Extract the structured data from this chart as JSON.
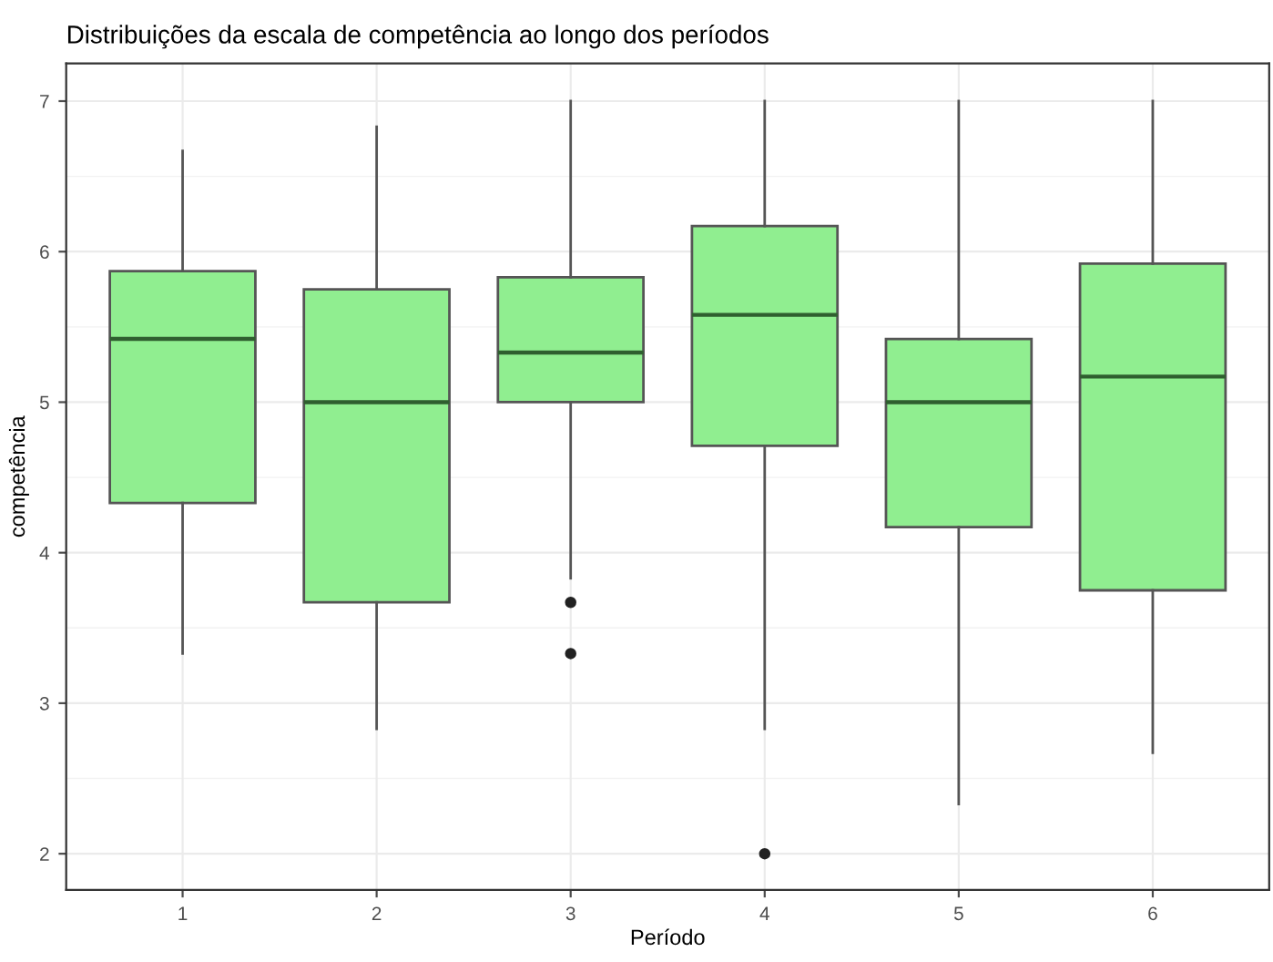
{
  "chart_data": {
    "type": "box",
    "title": "Distribuições da escala de competência ao longo dos períodos",
    "xlabel": "Período",
    "ylabel": "competência",
    "categories": [
      "1",
      "2",
      "3",
      "4",
      "5",
      "6"
    ],
    "color": "#90ee90",
    "boxes": [
      {
        "low": 3.33,
        "q1": 4.33,
        "median": 5.42,
        "q3": 5.87,
        "high": 6.67
      },
      {
        "low": 2.83,
        "q1": 3.67,
        "median": 5.0,
        "q3": 5.75,
        "high": 6.83
      },
      {
        "low": 3.83,
        "q1": 5.0,
        "median": 5.33,
        "q3": 5.83,
        "high": 7.0,
        "outliers": [
          3.67,
          3.33
        ]
      },
      {
        "low": 2.83,
        "q1": 4.71,
        "median": 5.58,
        "q3": 6.17,
        "high": 7.0,
        "outliers": [
          2.0
        ]
      },
      {
        "low": 2.33,
        "q1": 4.17,
        "median": 5.0,
        "q3": 5.42,
        "high": 7.0
      },
      {
        "low": 2.67,
        "q1": 3.75,
        "median": 5.17,
        "q3": 5.92,
        "high": 7.0
      }
    ],
    "ylim": [
      1.76,
      7.25
    ],
    "yticks": [
      2,
      3,
      4,
      5,
      6,
      7
    ],
    "grid": true
  }
}
